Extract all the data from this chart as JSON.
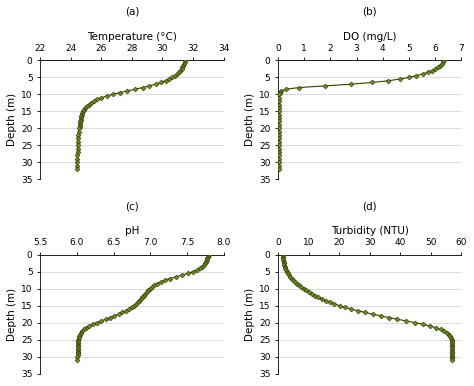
{
  "title_a": "(a)",
  "title_b": "(b)",
  "title_c": "(c)",
  "title_d": "(d)",
  "xlabel_a": "Temperature (°C)",
  "xlabel_b": "DO (mg/L)",
  "xlabel_c": "pH",
  "xlabel_d": "Turbidity (NTU)",
  "ylabel": "Depth (m)",
  "line_color": "#3a3a00",
  "marker_color": "#6b8e23",
  "marker_edge_color": "#2a2a00",
  "temp_depth": [
    0,
    0.5,
    1,
    1.5,
    2,
    2.5,
    3,
    3.5,
    4,
    4.5,
    5,
    5.5,
    6,
    6.5,
    7,
    7.5,
    8,
    8.5,
    9,
    9.5,
    10,
    10.5,
    11,
    11.5,
    12,
    12.5,
    13,
    13.5,
    14,
    14.5,
    15,
    15.5,
    16,
    16.5,
    17,
    17.5,
    18,
    18.5,
    19,
    19.5,
    20,
    21,
    22,
    23,
    24,
    25,
    26,
    27,
    28,
    29,
    30,
    31,
    32
  ],
  "temp_val": [
    31.5,
    31.45,
    31.4,
    31.35,
    31.3,
    31.25,
    31.15,
    31.05,
    30.95,
    30.82,
    30.65,
    30.45,
    30.2,
    29.9,
    29.55,
    29.15,
    28.7,
    28.2,
    27.7,
    27.2,
    26.75,
    26.35,
    26.0,
    25.72,
    25.5,
    25.32,
    25.17,
    25.05,
    24.95,
    24.87,
    24.8,
    24.75,
    24.72,
    24.69,
    24.67,
    24.65,
    24.63,
    24.61,
    24.59,
    24.57,
    24.55,
    24.52,
    24.5,
    24.48,
    24.47,
    24.46,
    24.45,
    24.44,
    24.43,
    24.42,
    24.41,
    24.4,
    24.39
  ],
  "temp_xlim": [
    22,
    34
  ],
  "temp_xticks": [
    22,
    24,
    26,
    28,
    30,
    32,
    34
  ],
  "do_depth": [
    0,
    0.5,
    1,
    1.5,
    2,
    2.5,
    3,
    3.5,
    4,
    4.5,
    5,
    5.5,
    6,
    6.5,
    7,
    7.5,
    8,
    8.5,
    9,
    9.5,
    10,
    11,
    12,
    13,
    14,
    15,
    16,
    17,
    18,
    19,
    20,
    21,
    22,
    23,
    24,
    25,
    26,
    27,
    28,
    29,
    30,
    31,
    32
  ],
  "do_val": [
    6.35,
    6.3,
    6.25,
    6.18,
    6.1,
    6.0,
    5.88,
    5.72,
    5.52,
    5.28,
    5.0,
    4.65,
    4.2,
    3.6,
    2.8,
    1.8,
    0.8,
    0.3,
    0.12,
    0.06,
    0.04,
    0.04,
    0.04,
    0.04,
    0.04,
    0.04,
    0.04,
    0.04,
    0.04,
    0.04,
    0.04,
    0.04,
    0.04,
    0.04,
    0.04,
    0.04,
    0.04,
    0.04,
    0.04,
    0.04,
    0.04,
    0.04,
    0.04
  ],
  "do_xlim": [
    0,
    7
  ],
  "do_xticks": [
    0,
    1,
    2,
    3,
    4,
    5,
    6,
    7
  ],
  "ph_depth": [
    0,
    0.5,
    1,
    1.5,
    2,
    2.5,
    3,
    3.5,
    4,
    4.5,
    5,
    5.5,
    6,
    6.5,
    7,
    7.5,
    8,
    8.5,
    9,
    9.5,
    10,
    10.5,
    11,
    11.5,
    12,
    12.5,
    13,
    13.5,
    14,
    14.5,
    15,
    15.5,
    16,
    16.5,
    17,
    17.5,
    18,
    18.5,
    19,
    19.5,
    20,
    20.5,
    21,
    21.5,
    22,
    22.5,
    23,
    23.5,
    24,
    24.5,
    25,
    25.5,
    26,
    26.5,
    27,
    27.5,
    28,
    28.5,
    29,
    29.5,
    30,
    31
  ],
  "ph_val": [
    7.8,
    7.79,
    7.78,
    7.77,
    7.76,
    7.75,
    7.73,
    7.71,
    7.68,
    7.64,
    7.58,
    7.51,
    7.43,
    7.35,
    7.27,
    7.2,
    7.14,
    7.09,
    7.05,
    7.02,
    6.99,
    6.97,
    6.95,
    6.93,
    6.91,
    6.89,
    6.87,
    6.85,
    6.83,
    6.81,
    6.78,
    6.75,
    6.71,
    6.67,
    6.62,
    6.57,
    6.51,
    6.45,
    6.39,
    6.33,
    6.27,
    6.22,
    6.17,
    6.13,
    6.1,
    6.07,
    6.05,
    6.04,
    6.03,
    6.025,
    6.02,
    6.018,
    6.016,
    6.014,
    6.013,
    6.012,
    6.011,
    6.01,
    6.009,
    6.008,
    6.007,
    6.006
  ],
  "ph_xlim": [
    5.5,
    8.0
  ],
  "ph_xticks": [
    5.5,
    6.0,
    6.5,
    7.0,
    7.5,
    8.0
  ],
  "turb_depth": [
    0,
    0.5,
    1,
    1.5,
    2,
    2.5,
    3,
    3.5,
    4,
    4.5,
    5,
    5.5,
    6,
    6.5,
    7,
    7.5,
    8,
    8.5,
    9,
    9.5,
    10,
    10.5,
    11,
    11.5,
    12,
    12.5,
    13,
    13.5,
    14,
    14.5,
    15,
    15.5,
    16,
    16.5,
    17,
    17.5,
    18,
    18.5,
    19,
    19.5,
    20,
    20.5,
    21,
    21.5,
    22,
    22.5,
    23,
    23.5,
    24,
    24.5,
    25,
    25.5,
    26,
    26.5,
    27,
    27.5,
    28,
    28.5,
    29,
    29.5,
    30,
    30.5,
    31
  ],
  "turb_val": [
    1.5,
    1.6,
    1.7,
    1.8,
    1.9,
    2.0,
    2.1,
    2.2,
    2.4,
    2.6,
    2.9,
    3.2,
    3.6,
    4.0,
    4.5,
    5.0,
    5.6,
    6.2,
    6.9,
    7.6,
    8.4,
    9.2,
    10.1,
    11.0,
    12.0,
    13.1,
    14.3,
    15.6,
    17.0,
    18.5,
    20.2,
    22.0,
    24.0,
    26.2,
    28.5,
    31.0,
    33.6,
    36.3,
    39.1,
    42.0,
    44.9,
    47.5,
    49.8,
    51.7,
    53.2,
    54.4,
    55.3,
    55.9,
    56.3,
    56.6,
    56.8,
    56.9,
    57.0,
    57.0,
    57.0,
    57.0,
    57.0,
    57.0,
    57.0,
    57.0,
    57.0,
    57.0,
    57.0
  ],
  "turb_xlim": [
    0,
    60
  ],
  "turb_xticks": [
    0,
    10,
    20,
    30,
    40,
    50,
    60
  ],
  "depth_ylim": [
    35,
    0
  ],
  "depth_yticks": [
    0,
    5,
    10,
    15,
    20,
    25,
    30,
    35
  ],
  "bg_color": "#ffffff",
  "font_family": "DejaVu Sans"
}
